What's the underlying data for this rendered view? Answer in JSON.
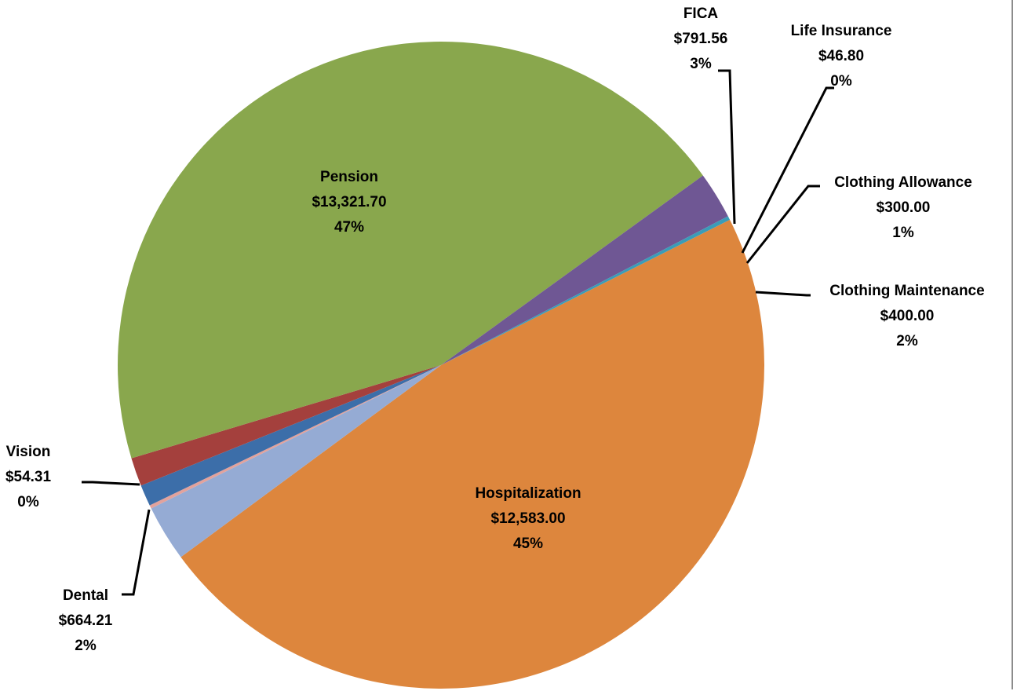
{
  "chart_data": {
    "type": "pie",
    "title": "",
    "slices": [
      {
        "name": "Pension",
        "value": 13321.7,
        "value_label": "$13,321.70",
        "percent_label": "47%",
        "color": "#dd863d"
      },
      {
        "name": "FICA",
        "value": 791.56,
        "value_label": "$791.56",
        "percent_label": "3%",
        "color": "#95abd4"
      },
      {
        "name": "Life Insurance",
        "value": 46.8,
        "value_label": "$46.80",
        "percent_label": "0%",
        "color": "#e2a29c"
      },
      {
        "name": "Clothing Allowance",
        "value": 300.0,
        "value_label": "$300.00",
        "percent_label": "1%",
        "color": "#3c6ea9"
      },
      {
        "name": "Clothing Maintenance",
        "value": 400.0,
        "value_label": "$400.00",
        "percent_label": "2%",
        "color": "#a4403d"
      },
      {
        "name": "Hospitalization",
        "value": 12583.0,
        "value_label": "$12,583.00",
        "percent_label": "45%",
        "color": "#89a74d"
      },
      {
        "name": "Dental",
        "value": 664.21,
        "value_label": "$664.21",
        "percent_label": "2%",
        "color": "#6f5794"
      },
      {
        "name": "Vision",
        "value": 54.31,
        "value_label": "$54.31",
        "percent_label": "0%",
        "color": "#3a9cb8"
      }
    ],
    "legend": "none",
    "data_labels": "name, value, percent"
  }
}
